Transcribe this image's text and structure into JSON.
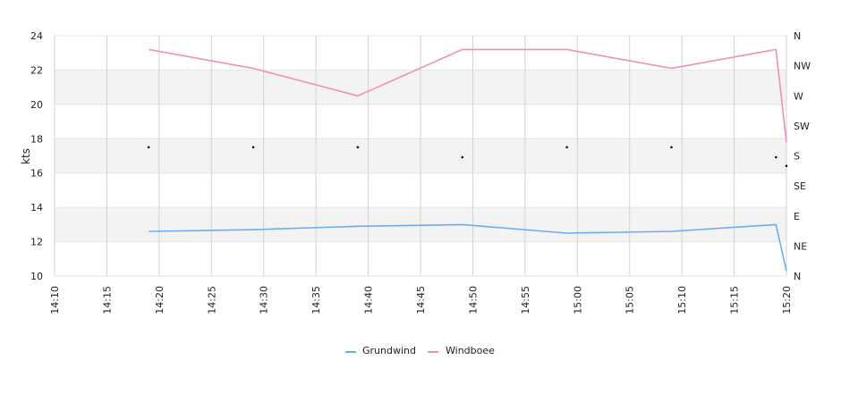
{
  "chart_data": {
    "type": "line",
    "title": "",
    "xlabel": "",
    "ylabel": "kts",
    "ylim": [
      10,
      24
    ],
    "yticks": [
      "10",
      "12",
      "14",
      "16",
      "18",
      "20",
      "22",
      "24"
    ],
    "x_ticks": [
      "14:10",
      "14:15",
      "14:20",
      "14:25",
      "14:30",
      "14:35",
      "14:40",
      "14:45",
      "14:50",
      "14:55",
      "15:00",
      "15:05",
      "15:10",
      "15:15",
      "15:20"
    ],
    "x_range": [
      "14:10",
      "15:20"
    ],
    "right_axis": {
      "labels": [
        "N",
        "NE",
        "E",
        "SE",
        "S",
        "SW",
        "W",
        "NW",
        "N"
      ],
      "range_degrees": [
        0,
        360
      ]
    },
    "grid": true,
    "alternating_bands": true,
    "legend_position": "bottom-center",
    "series": [
      {
        "name": "Grundwind",
        "color": "#6aaef0",
        "x": [
          "14:19",
          "14:29",
          "14:39",
          "14:49",
          "14:59",
          "15:09",
          "15:19",
          "15:20"
        ],
        "values": [
          12.6,
          12.7,
          12.9,
          13.0,
          12.5,
          12.6,
          13.0,
          10.3
        ]
      },
      {
        "name": "Windboee",
        "color": "#f08cc0",
        "x": [
          "14:19",
          "14:29",
          "14:39",
          "14:49",
          "14:59",
          "15:09",
          "15:19",
          "15:20"
        ],
        "values": [
          23.2,
          22.1,
          20.5,
          23.2,
          23.2,
          22.1,
          23.2,
          17.8
        ]
      }
    ],
    "direction_points": {
      "x": [
        "14:19",
        "14:29",
        "14:39",
        "14:49",
        "14:59",
        "15:09",
        "15:19",
        "15:20"
      ],
      "degrees": [
        193,
        193,
        193,
        178,
        193,
        193,
        178,
        165
      ]
    }
  }
}
